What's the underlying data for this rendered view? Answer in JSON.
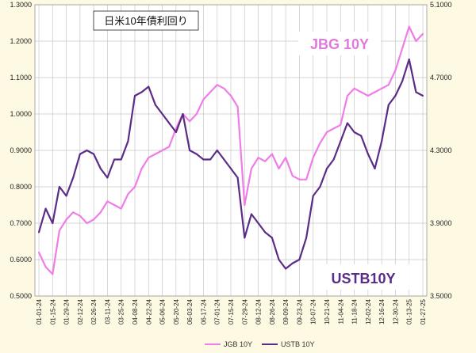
{
  "chart_data": {
    "type": "line",
    "title": "日米10年債利回り",
    "x": [
      "01-01-24",
      "01-08-24",
      "01-15-24",
      "01-22-24",
      "01-29-24",
      "02-05-24",
      "02-12-24",
      "02-19-24",
      "02-26-24",
      "03-04-24",
      "03-11-24",
      "03-18-24",
      "03-25-24",
      "04-01-24",
      "04-08-24",
      "04-15-24",
      "04-22-24",
      "04-29-24",
      "05-06-24",
      "05-13-24",
      "05-20-24",
      "05-27-24",
      "06-03-24",
      "06-10-24",
      "06-17-24",
      "06-24-24",
      "07-01-24",
      "07-08-24",
      "07-15-24",
      "07-22-24",
      "07-29-24",
      "08-05-24",
      "08-12-24",
      "08-19-24",
      "08-26-24",
      "09-02-24",
      "09-09-24",
      "09-16-24",
      "09-23-24",
      "09-30-24",
      "10-07-24",
      "10-14-24",
      "10-21-24",
      "10-28-24",
      "11-04-24",
      "11-11-24",
      "11-18-24",
      "11-25-24",
      "12-02-24",
      "12-09-24",
      "12-16-24",
      "12-23-24",
      "12-30-24",
      "01-06-25",
      "01-13-25",
      "01-20-25",
      "01-27-25"
    ],
    "x_tick_labels": [
      "01-01-24",
      "01-15-24",
      "01-29-24",
      "02-12-24",
      "02-26-24",
      "03-11-24",
      "03-25-24",
      "04-08-24",
      "04-22-24",
      "05-06-24",
      "05-20-24",
      "06-03-24",
      "06-17-24",
      "07-01-24",
      "07-15-24",
      "07-29-24",
      "08-12-24",
      "08-26-24",
      "09-09-24",
      "09-23-24",
      "10-07-24",
      "10-21-24",
      "11-04-24",
      "11-18-24",
      "12-02-24",
      "12-16-24",
      "12-30-24",
      "01-13-25",
      "01-27-25"
    ],
    "y_left": {
      "min": 0.5,
      "max": 1.3,
      "step": 0.1,
      "tick_labels": [
        "0.5000",
        "0.6000",
        "0.7000",
        "0.8000",
        "0.9000",
        "1.0000",
        "1.1000",
        "1.2000",
        "1.3000"
      ]
    },
    "y_right": {
      "min": 3.5,
      "max": 5.1,
      "step": 0.4,
      "tick_labels": [
        "3.5000",
        "3.9000",
        "4.3000",
        "4.7000",
        "5.1000"
      ]
    },
    "grid": true,
    "legend_position": "bottom",
    "series": [
      {
        "name": "JGB 10Y",
        "axis": "left",
        "color": "#f07ce8",
        "label": "JBG 10Y",
        "values": [
          0.62,
          0.58,
          0.56,
          0.68,
          0.71,
          0.73,
          0.72,
          0.7,
          0.71,
          0.73,
          0.76,
          0.75,
          0.74,
          0.78,
          0.8,
          0.85,
          0.88,
          0.89,
          0.9,
          0.91,
          0.96,
          1.0,
          0.98,
          1.0,
          1.04,
          1.06,
          1.08,
          1.07,
          1.05,
          1.02,
          0.75,
          0.85,
          0.88,
          0.87,
          0.89,
          0.85,
          0.88,
          0.83,
          0.82,
          0.82,
          0.88,
          0.92,
          0.95,
          0.96,
          0.97,
          1.05,
          1.07,
          1.06,
          1.05,
          1.06,
          1.07,
          1.08,
          1.12,
          1.18,
          1.24,
          1.2,
          1.22
        ]
      },
      {
        "name": "USTB 10Y",
        "axis": "right",
        "color": "#5b2c86",
        "label": "USTB10Y",
        "values": [
          3.85,
          3.98,
          3.9,
          4.1,
          4.05,
          4.15,
          4.28,
          4.3,
          4.28,
          4.2,
          4.15,
          4.25,
          4.25,
          4.35,
          4.6,
          4.62,
          4.65,
          4.55,
          4.5,
          4.45,
          4.4,
          4.5,
          4.3,
          4.28,
          4.25,
          4.25,
          4.3,
          4.25,
          4.2,
          4.15,
          3.82,
          3.95,
          3.9,
          3.85,
          3.82,
          3.7,
          3.65,
          3.68,
          3.7,
          3.82,
          4.05,
          4.1,
          4.2,
          4.25,
          4.35,
          4.45,
          4.4,
          4.38,
          4.28,
          4.2,
          4.35,
          4.55,
          4.6,
          4.68,
          4.8,
          4.62,
          4.6
        ]
      }
    ],
    "legend": [
      {
        "name": "JGB 10Y",
        "color": "#f07ce8"
      },
      {
        "name": "USTB 10Y",
        "color": "#5b2c86"
      }
    ]
  }
}
